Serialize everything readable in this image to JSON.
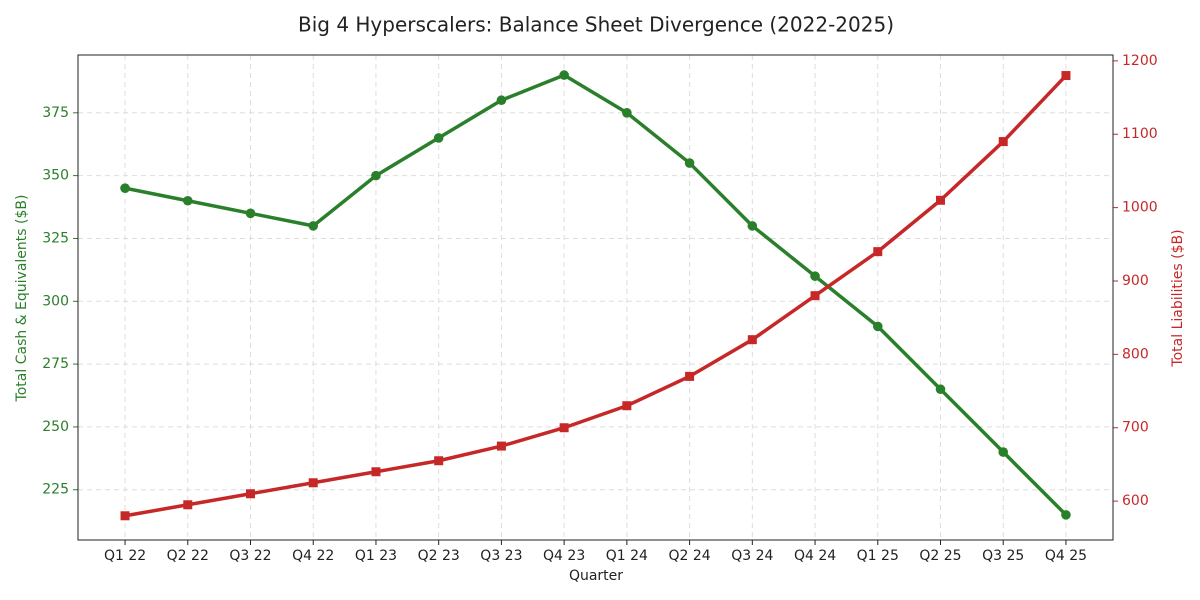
{
  "chart_data": {
    "type": "line",
    "title": "Big 4 Hyperscalers: Balance Sheet Divergence (2022-2025)",
    "xlabel": "Quarter",
    "ylabel": "Total Cash & Equivalents ($B)",
    "y2label": "Total Liabilities ($B)",
    "categories": [
      "Q1 22",
      "Q2 22",
      "Q3 22",
      "Q4 22",
      "Q1 23",
      "Q2 23",
      "Q3 23",
      "Q4 23",
      "Q1 24",
      "Q2 24",
      "Q3 24",
      "Q4 24",
      "Q1 25",
      "Q2 25",
      "Q3 25",
      "Q4 25"
    ],
    "series": [
      {
        "name": "Total Cash & Equivalents",
        "color": "#2a7f2a",
        "marker": "circle",
        "axis": "y",
        "values": [
          345,
          340,
          335,
          330,
          350,
          365,
          380,
          390,
          375,
          355,
          330,
          310,
          290,
          265,
          240,
          215
        ]
      },
      {
        "name": "Total Liabilities",
        "color": "#c62828",
        "marker": "square",
        "axis": "y2",
        "values": [
          580,
          595,
          610,
          625,
          640,
          655,
          675,
          700,
          730,
          770,
          820,
          880,
          940,
          1010,
          1090,
          1180
        ]
      }
    ],
    "ylim": [
      205,
      398
    ],
    "yticks": [
      225,
      250,
      275,
      300,
      325,
      350,
      375
    ],
    "y2lim": [
      547,
      1208
    ],
    "y2ticks": [
      600,
      700,
      800,
      900,
      1000,
      1100,
      1200
    ],
    "grid": true
  }
}
